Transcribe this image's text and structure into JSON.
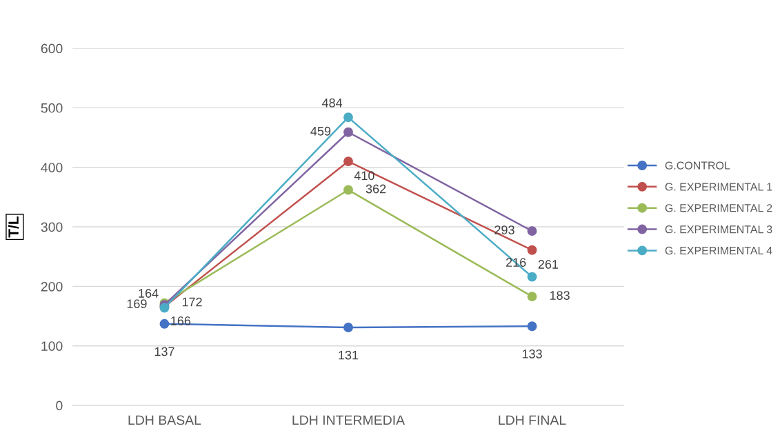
{
  "chart_data": {
    "type": "line",
    "ylabel": "T/L",
    "categories": [
      "LDH BASAL",
      "LDH INTERMEDIA",
      "LDH FINAL"
    ],
    "series": [
      {
        "name": "G.CONTROL",
        "color": "#4472c4",
        "values": [
          137,
          131,
          133
        ]
      },
      {
        "name": "G. EXPERIMENTAL 1",
        "color": "#c0504d",
        "values": [
          166,
          410,
          261
        ]
      },
      {
        "name": "G. EXPERIMENTAL 2",
        "color": "#9bbb59",
        "values": [
          172,
          362,
          183
        ]
      },
      {
        "name": "G. EXPERIMENTAL 3",
        "color": "#8064a2",
        "values": [
          169,
          459,
          293
        ]
      },
      {
        "name": "G. EXPERIMENTAL 4",
        "color": "#4bacc6",
        "values": [
          164,
          484,
          216
        ]
      }
    ],
    "ylim": [
      0,
      600
    ],
    "yticks": [
      0,
      100,
      200,
      300,
      400,
      500,
      600
    ],
    "grid": "y",
    "legend": "right",
    "marker": "circle",
    "line_style": "solid",
    "data_labels": true
  }
}
